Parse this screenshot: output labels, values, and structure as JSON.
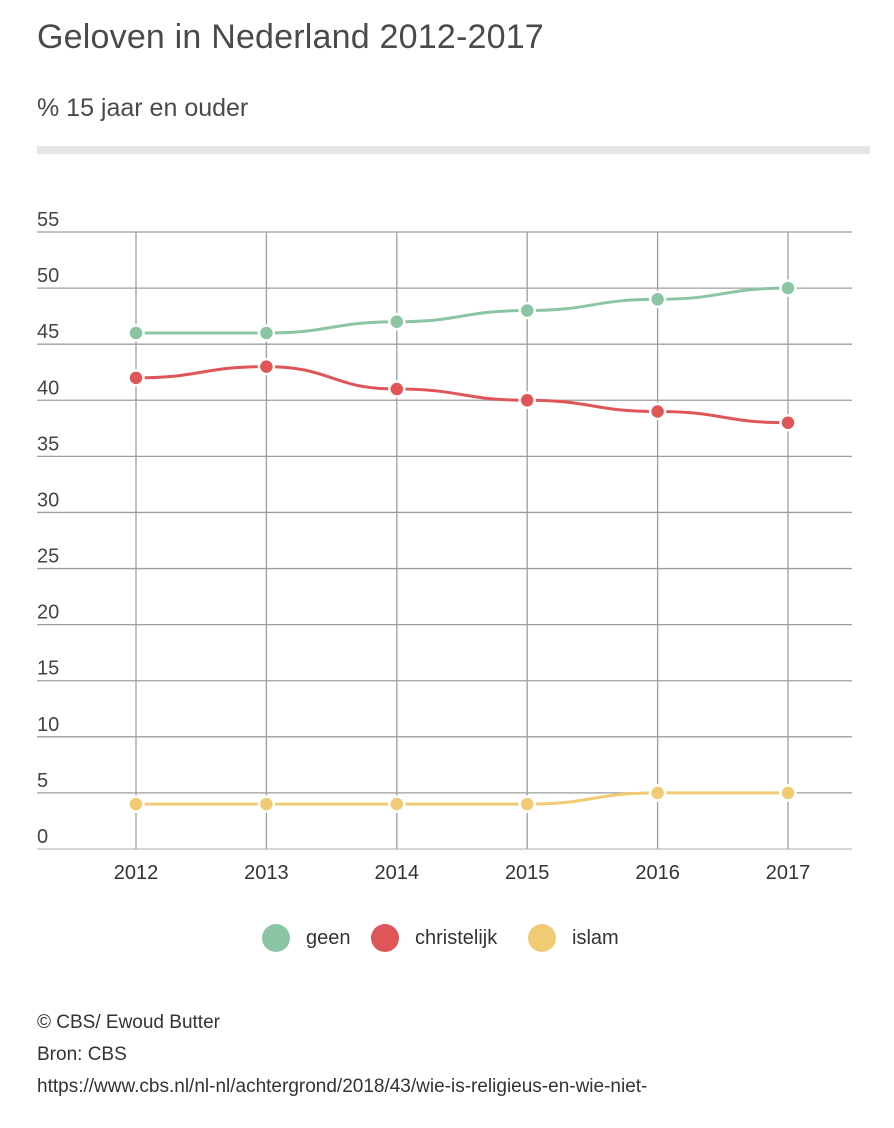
{
  "title": "Geloven in Nederland 2012-2017",
  "subtitle": "% 15 jaar en ouder",
  "chart_data": {
    "type": "line",
    "title": "Geloven in Nederland 2012-2017",
    "subtitle": "% 15 jaar en ouder",
    "xlabel": "",
    "ylabel": "",
    "categories": [
      "2012",
      "2013",
      "2014",
      "2015",
      "2016",
      "2017"
    ],
    "yticks": [
      0,
      5,
      10,
      15,
      20,
      25,
      30,
      35,
      40,
      45,
      50,
      55
    ],
    "ylim": [
      0,
      55
    ],
    "grid": true,
    "legend_position": "bottom",
    "series": [
      {
        "name": "geen",
        "color": "#8cc5a4",
        "values": [
          46,
          46,
          47,
          48,
          49,
          50
        ]
      },
      {
        "name": "christelijk",
        "color": "#e05658",
        "values": [
          42,
          43,
          41,
          40,
          39,
          38
        ]
      },
      {
        "name": "islam",
        "color": "#f0cb73",
        "values": [
          4,
          4,
          4,
          4,
          5,
          5
        ]
      }
    ]
  },
  "footer": {
    "credit": "© CBS/ Ewoud Butter",
    "source": "Bron: CBS",
    "url": "https://www.cbs.nl/nl-nl/achtergrond/2018/43/wie-is-religieus-en-wie-niet-"
  }
}
